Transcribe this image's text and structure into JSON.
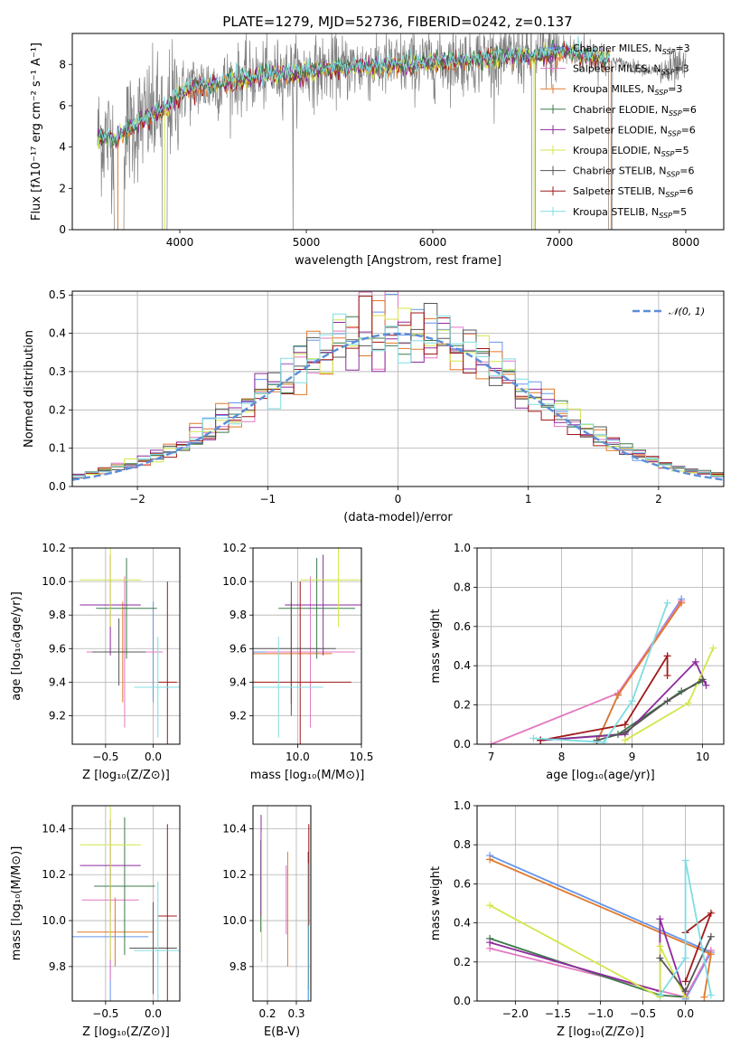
{
  "colors": {
    "chabrier_miles": "#6495ED",
    "salpeter_miles": "#E377C2",
    "kroupa_miles": "#E0782A",
    "chabrier_elodie": "#3C7A4A",
    "salpeter_elodie": "#8E2A9E",
    "kroupa_elodie": "#D4E64A",
    "chabrier_stelib": "#555555",
    "salpeter_stelib": "#A01818",
    "kroupa_stelib": "#7FDDE0",
    "data_spectrum": "#808080",
    "normal_curve": "#5B8DD9"
  },
  "figure_title": "PLATE=1279, MJD=52736, FIBERID=0242, z=0.137",
  "chart_data": [
    {
      "id": "spectrum",
      "type": "line",
      "xlabel": "wavelength [Angstrom, rest frame]",
      "ylabel": "Flux [fλ10⁻¹⁷ erg cm⁻² s⁻¹ A⁻¹]",
      "xlim": [
        3150,
        8300
      ],
      "ylim": [
        0,
        9.5
      ],
      "xticks": [
        "4000",
        "5000",
        "6000",
        "7000",
        "8000"
      ],
      "yticks": [
        "0",
        "2",
        "4",
        "6",
        "8"
      ],
      "legend_position": "top-right",
      "legend": [
        {
          "label": "Chabrier MILES, N",
          "sub": "SSP",
          "tail": "=3",
          "color_key": "chabrier_miles"
        },
        {
          "label": "Salpeter MILES, N",
          "sub": "SSP",
          "tail": "=3",
          "color_key": "salpeter_miles"
        },
        {
          "label": "Kroupa MILES, N",
          "sub": "SSP",
          "tail": "=3",
          "color_key": "kroupa_miles"
        },
        {
          "label": "Chabrier ELODIE, N",
          "sub": "SSP",
          "tail": "=6",
          "color_key": "chabrier_elodie"
        },
        {
          "label": "Salpeter ELODIE, N",
          "sub": "SSP",
          "tail": "=6",
          "color_key": "salpeter_elodie"
        },
        {
          "label": "Kroupa ELODIE, N",
          "sub": "SSP",
          "tail": "=5",
          "color_key": "kroupa_elodie"
        },
        {
          "label": "Chabrier STELIB, N",
          "sub": "SSP",
          "tail": "=6",
          "color_key": "chabrier_stelib"
        },
        {
          "label": "Salpeter STELIB, N",
          "sub": "SSP",
          "tail": "=6",
          "color_key": "salpeter_stelib"
        },
        {
          "label": "Kroupa STELIB, N",
          "sub": "SSP",
          "tail": "=5",
          "color_key": "kroupa_stelib"
        }
      ],
      "model_continuum": {
        "x": [
          3350,
          3500,
          3600,
          3700,
          3800,
          3900,
          4000,
          4100,
          4200,
          4300,
          4400,
          4600,
          4800,
          5000,
          5200,
          5400,
          5600,
          5800,
          6000,
          6200,
          6400,
          6600,
          6800,
          7000,
          7200,
          7400,
          7600,
          7800,
          8000
        ],
        "y": [
          4.5,
          4.4,
          4.9,
          5.3,
          5.6,
          5.9,
          6.6,
          6.9,
          7.0,
          7.0,
          7.2,
          7.4,
          7.6,
          7.6,
          7.8,
          7.9,
          7.9,
          8.0,
          8.1,
          8.2,
          8.3,
          8.4,
          8.4,
          8.6,
          8.5,
          8.2,
          7.9,
          7.6,
          7.8
        ]
      }
    },
    {
      "id": "residuals",
      "type": "histogram",
      "xlabel": "(data-model)/error",
      "ylabel": "Normed distribution",
      "xlim": [
        -2.5,
        2.5
      ],
      "ylim": [
        0,
        0.51
      ],
      "xticks": [
        "−2",
        "−1",
        "0",
        "1",
        "2"
      ],
      "yticks": [
        "0.0",
        "0.1",
        "0.2",
        "0.3",
        "0.4",
        "0.5"
      ],
      "grid": true,
      "legend_position": "top-right",
      "legend_label": "𝒩(0, 1)",
      "bin_width": 0.1
    },
    {
      "id": "age_vs_Z",
      "type": "errorbar",
      "xlabel": "Z [log₁₀(Z/Z⊙)]",
      "ylabel": "age  [log₁₀(age/yr)]",
      "xlim": [
        -0.85,
        0.28
      ],
      "ylim": [
        9.03,
        10.2
      ],
      "xticks": [
        "−0.5",
        "0.0"
      ],
      "yticks": [
        "9.2",
        "9.4",
        "9.6",
        "9.8",
        "10.0",
        "10.2"
      ],
      "grid": true,
      "points": [
        {
          "c": "chabrier_miles",
          "x": 0.0,
          "xe": 0.05,
          "y": 9.58,
          "ye": 0.3
        },
        {
          "c": "salpeter_miles",
          "x": -0.3,
          "xe": 0.4,
          "y": 9.58,
          "ye": 0.45
        },
        {
          "c": "kroupa_miles",
          "x": -0.32,
          "xe": 0.2,
          "y": 9.58,
          "ye": 0.3
        },
        {
          "c": "chabrier_elodie",
          "x": -0.28,
          "xe": 0.32,
          "y": 9.84,
          "ye": 0.3
        },
        {
          "c": "salpeter_elodie",
          "x": -0.45,
          "xe": 0.32,
          "y": 9.86,
          "ye": 0.3
        },
        {
          "c": "kroupa_elodie",
          "x": -0.45,
          "xe": 0.32,
          "y": 10.01,
          "ye": 0.28
        },
        {
          "c": "chabrier_stelib",
          "x": -0.36,
          "xe": 0.28,
          "y": 9.58,
          "ye": 0.2
        },
        {
          "c": "salpeter_stelib",
          "x": 0.15,
          "xe": 0.1,
          "y": 9.4,
          "ye": 0.6
        },
        {
          "c": "kroupa_stelib",
          "x": 0.05,
          "xe": 0.25,
          "y": 9.37,
          "ye": 0.3
        }
      ]
    },
    {
      "id": "age_vs_mass",
      "type": "errorbar",
      "xlabel": "mass [log₁₀(M/M⊙)]",
      "xlim": [
        9.65,
        10.5
      ],
      "ylim": [
        9.03,
        10.2
      ],
      "xticks": [
        "10.0",
        "10.5"
      ],
      "yticks": [
        "9.2",
        "9.4",
        "9.6",
        "9.8",
        "10.0",
        "10.2"
      ],
      "grid": true,
      "points": [
        {
          "c": "chabrier_miles",
          "x": 9.95,
          "xe": 0.4,
          "y": 9.58,
          "ye": 0.3
        },
        {
          "c": "salpeter_miles",
          "x": 10.1,
          "xe": 0.35,
          "y": 9.58,
          "ye": 0.45
        },
        {
          "c": "kroupa_miles",
          "x": 9.95,
          "xe": 0.32,
          "y": 9.57,
          "ye": 0.3
        },
        {
          "c": "chabrier_elodie",
          "x": 10.15,
          "xe": 0.3,
          "y": 9.84,
          "ye": 0.3
        },
        {
          "c": "salpeter_elodie",
          "x": 10.2,
          "xe": 0.3,
          "y": 9.86,
          "ye": 0.3
        },
        {
          "c": "kroupa_elodie",
          "x": 10.32,
          "xe": 0.3,
          "y": 10.01,
          "ye": 0.28
        },
        {
          "c": "chabrier_stelib",
          "x": 9.95,
          "xe": 0.35,
          "y": 9.6,
          "ye": 0.4
        },
        {
          "c": "salpeter_stelib",
          "x": 10.02,
          "xe": 0.4,
          "y": 9.4,
          "ye": 0.6
        },
        {
          "c": "kroupa_stelib",
          "x": 9.85,
          "xe": 0.35,
          "y": 9.37,
          "ye": 0.3
        }
      ]
    },
    {
      "id": "weight_vs_age",
      "type": "line",
      "xlabel": "age  [log₁₀(age/yr)]",
      "ylabel": "mass weight",
      "xlim": [
        6.8,
        10.3
      ],
      "ylim": [
        0,
        1.0
      ],
      "xticks": [
        "7",
        "8",
        "9",
        "10"
      ],
      "yticks": [
        "0.0",
        "0.2",
        "0.4",
        "0.6",
        "0.8",
        "1.0"
      ],
      "grid": true,
      "series": [
        {
          "c": "chabrier_miles",
          "x": [
            8.5,
            8.8,
            9.7
          ],
          "y": [
            0.01,
            0.25,
            0.74
          ]
        },
        {
          "c": "salpeter_miles",
          "x": [
            7.0,
            8.8,
            9.7
          ],
          "y": [
            0.0,
            0.26,
            0.73
          ]
        },
        {
          "c": "kroupa_miles",
          "x": [
            8.5,
            8.8,
            9.7
          ],
          "y": [
            0.01,
            0.25,
            0.72
          ]
        },
        {
          "c": "chabrier_elodie",
          "x": [
            7.7,
            8.8,
            9.7,
            10.0
          ],
          "y": [
            0.02,
            0.05,
            0.27,
            0.32
          ]
        },
        {
          "c": "salpeter_elodie",
          "x": [
            7.7,
            8.9,
            9.9,
            10.05
          ],
          "y": [
            0.02,
            0.05,
            0.42,
            0.3
          ]
        },
        {
          "c": "kroupa_elodie",
          "x": [
            8.9,
            9.8,
            10.15
          ],
          "y": [
            0.02,
            0.21,
            0.49
          ]
        },
        {
          "c": "chabrier_stelib",
          "x": [
            8.5,
            8.9,
            9.5,
            10.0
          ],
          "y": [
            0.02,
            0.06,
            0.22,
            0.33
          ]
        },
        {
          "c": "salpeter_stelib",
          "x": [
            7.7,
            8.9,
            9.5,
            9.5
          ],
          "y": [
            0.02,
            0.1,
            0.45,
            0.35
          ]
        },
        {
          "c": "kroupa_stelib",
          "x": [
            7.6,
            8.6,
            9.0,
            9.5
          ],
          "y": [
            0.03,
            0.01,
            0.22,
            0.72
          ]
        }
      ]
    },
    {
      "id": "mass_vs_Z",
      "type": "errorbar",
      "xlabel": "Z [log₁₀(Z/Z⊙)]",
      "ylabel": "mass [log₁₀(M/M⊙)]",
      "xlim": [
        -0.85,
        0.28
      ],
      "ylim": [
        9.65,
        10.5
      ],
      "xticks": [
        "−0.5",
        "0.0"
      ],
      "yticks": [
        "9.8",
        "10.0",
        "10.2",
        "10.4"
      ],
      "grid": true,
      "points": [
        {
          "c": "chabrier_miles",
          "x": -0.45,
          "xe": 0.4,
          "y": 9.93,
          "ye": 0.3
        },
        {
          "c": "salpeter_miles",
          "x": -0.45,
          "xe": 0.3,
          "y": 10.09,
          "ye": 0.35
        },
        {
          "c": "kroupa_miles",
          "x": -0.4,
          "xe": 0.4,
          "y": 9.95,
          "ye": 0.15
        },
        {
          "c": "chabrier_elodie",
          "x": -0.3,
          "xe": 0.32,
          "y": 10.15,
          "ye": 0.3
        },
        {
          "c": "salpeter_elodie",
          "x": -0.45,
          "xe": 0.32,
          "y": 10.24,
          "ye": 0.2
        },
        {
          "c": "kroupa_elodie",
          "x": -0.45,
          "xe": 0.32,
          "y": 10.33,
          "ye": 0.5
        },
        {
          "c": "chabrier_stelib",
          "x": 0.0,
          "xe": 0.25,
          "y": 9.88,
          "ye": 0.2
        },
        {
          "c": "salpeter_stelib",
          "x": 0.15,
          "xe": 0.1,
          "y": 10.02,
          "ye": 0.4
        },
        {
          "c": "kroupa_stelib",
          "x": 0.05,
          "xe": 0.25,
          "y": 9.87,
          "ye": 0.3
        }
      ]
    },
    {
      "id": "mass_vs_ebv",
      "type": "errorbar",
      "xlabel": "E(B-V)",
      "xlim": [
        0.15,
        0.35
      ],
      "ylim": [
        9.65,
        10.5
      ],
      "xticks": [
        "0.2",
        "0.3"
      ],
      "yticks": [
        "9.8",
        "10.0",
        "10.2",
        "10.4"
      ],
      "grid": true,
      "points": [
        {
          "c": "chabrier_miles",
          "x": 0.342,
          "y": 9.93,
          "ye": 0.3
        },
        {
          "c": "salpeter_miles",
          "x": 0.265,
          "y": 10.09,
          "ye": 0.15
        },
        {
          "c": "kroupa_miles",
          "x": 0.27,
          "y": 10.05,
          "ye": 0.25
        },
        {
          "c": "chabrier_elodie",
          "x": 0.177,
          "y": 10.15,
          "ye": 0.2
        },
        {
          "c": "salpeter_elodie",
          "x": 0.178,
          "y": 10.24,
          "ye": 0.22
        },
        {
          "c": "kroupa_elodie",
          "x": 0.18,
          "y": 10.1,
          "ye": 0.28
        },
        {
          "c": "chabrier_stelib",
          "x": 0.341,
          "y": 10.0,
          "ye": 0.3
        },
        {
          "c": "salpeter_stelib",
          "x": 0.343,
          "y": 10.2,
          "ye": 0.22
        },
        {
          "c": "kroupa_stelib",
          "x": 0.34,
          "y": 9.95,
          "ye": 0.3
        }
      ]
    },
    {
      "id": "weight_vs_Z",
      "type": "line",
      "xlabel": "Z [log₁₀(Z/Z⊙)]",
      "ylabel": "mass weight",
      "xlim": [
        -2.45,
        0.45
      ],
      "ylim": [
        0,
        1.0
      ],
      "xticks": [
        "−2.0",
        "−1.5",
        "−1.0",
        "−0.5",
        "0.0"
      ],
      "yticks": [
        "0.0",
        "0.2",
        "0.4",
        "0.6",
        "0.8",
        "1.0"
      ],
      "grid": true,
      "series": [
        {
          "c": "chabrier_miles",
          "x": [
            -2.3,
            0.3,
            0.0
          ],
          "y": [
            0.745,
            0.25,
            0.01
          ]
        },
        {
          "c": "salpeter_miles",
          "x": [
            -2.3,
            0.0,
            0.3
          ],
          "y": [
            0.27,
            0.02,
            0.26
          ]
        },
        {
          "c": "kroupa_miles",
          "x": [
            -2.3,
            0.3,
            0.22
          ],
          "y": [
            0.725,
            0.24,
            0.02
          ]
        },
        {
          "c": "chabrier_elodie",
          "x": [
            -2.3,
            -0.3,
            0.0
          ],
          "y": [
            0.32,
            0.03,
            0.02
          ]
        },
        {
          "c": "salpeter_elodie",
          "x": [
            -2.3,
            -0.3,
            -0.3,
            0.0
          ],
          "y": [
            0.3,
            0.05,
            0.42,
            0.02
          ]
        },
        {
          "c": "kroupa_elodie",
          "x": [
            -2.3,
            -0.3,
            -0.3,
            0.0
          ],
          "y": [
            0.49,
            0.02,
            0.28,
            0.02
          ]
        },
        {
          "c": "chabrier_stelib",
          "x": [
            -0.3,
            0.0,
            0.3
          ],
          "y": [
            0.22,
            0.05,
            0.33
          ]
        },
        {
          "c": "salpeter_stelib",
          "x": [
            0.0,
            0.3,
            0.0
          ],
          "y": [
            0.35,
            0.45,
            0.1
          ]
        },
        {
          "c": "kroupa_stelib",
          "x": [
            -0.3,
            0.0,
            0.0,
            0.3
          ],
          "y": [
            0.03,
            0.22,
            0.72,
            0.03
          ]
        }
      ]
    }
  ]
}
